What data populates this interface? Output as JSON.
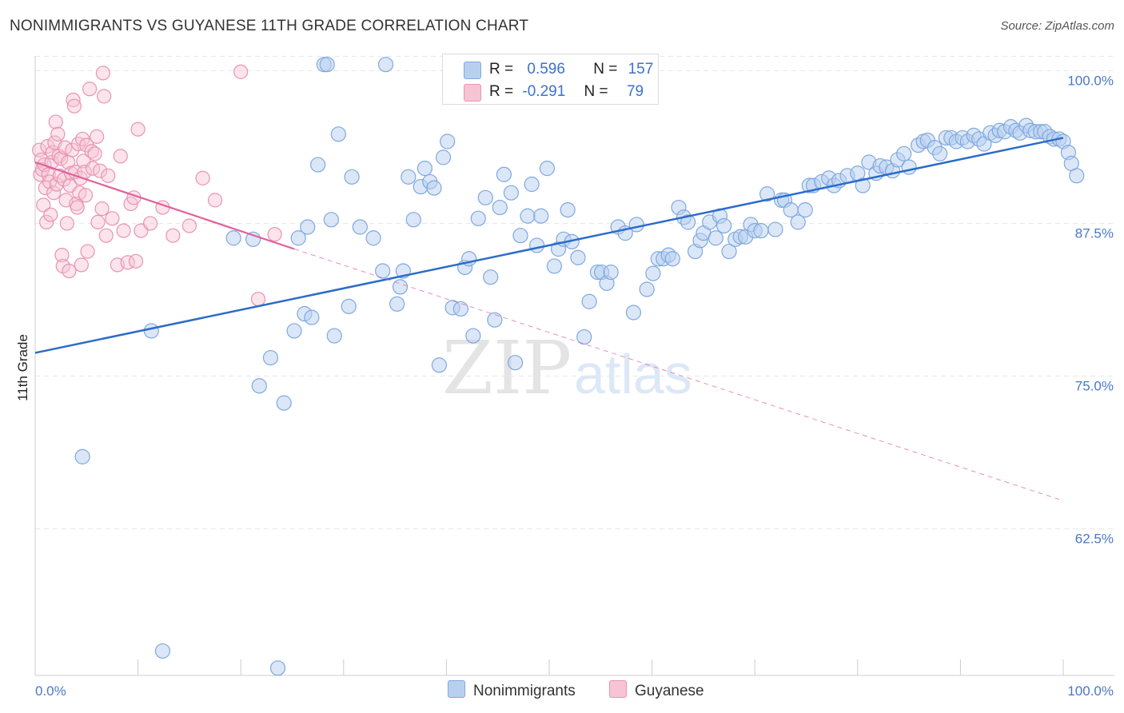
{
  "header": {
    "title": "NONIMMIGRANTS VS GUYANESE 11TH GRADE CORRELATION CHART",
    "source": "Source: ZipAtlas.com"
  },
  "watermark": {
    "zip": "ZIP",
    "atlas": "atlas"
  },
  "legend_stats": {
    "nonimmigrants": {
      "r_label": "R =",
      "r_value": "0.596",
      "n_label": "N =",
      "n_value": "157"
    },
    "guyanese": {
      "r_label": "R =",
      "r_value": "-0.291",
      "n_label": "N =",
      "n_value": "79"
    }
  },
  "bottom_legend": {
    "nonimmigrants": "Nonimmigrants",
    "guyanese": "Guyanese"
  },
  "colors": {
    "blue_fill": "#b8d0f0",
    "blue_stroke": "#7ea8e0",
    "blue_line": "#2b6cc9",
    "pink_fill": "#f7c4d4",
    "pink_stroke": "#e894b0",
    "pink_line": "#e0609a",
    "tick_text": "#4a78c8",
    "grid": "#e6e6e6"
  },
  "chart_data": {
    "type": "scatter",
    "title": "NONIMMIGRANTS VS GUYANESE 11TH GRADE CORRELATION CHART",
    "xlabel": "",
    "ylabel": "11th Grade",
    "xlim": [
      0,
      100
    ],
    "ylim": [
      50.5,
      101.2
    ],
    "y_ticks": [
      62.5,
      75.0,
      87.5,
      100.0
    ],
    "y_tick_labels": [
      "62.5%",
      "75.0%",
      "87.5%",
      "100.0%"
    ],
    "x_tick_labels": [
      "0.0%",
      "100.0%"
    ],
    "grid": true,
    "legend_position": "top-center",
    "series": [
      {
        "name": "Nonimmigrants",
        "trend": {
          "x": [
            0,
            100
          ],
          "y": [
            76.9,
            94.5
          ],
          "style": "solid"
        },
        "points": [
          [
            4.6,
            68.4
          ],
          [
            11.3,
            78.7
          ],
          [
            12.4,
            52.5
          ],
          [
            19.3,
            86.3
          ],
          [
            21.2,
            86.2
          ],
          [
            21.8,
            74.2
          ],
          [
            22.9,
            76.5
          ],
          [
            23.6,
            51.1
          ],
          [
            24.2,
            72.8
          ],
          [
            25.2,
            78.7
          ],
          [
            25.6,
            86.3
          ],
          [
            26.2,
            80.1
          ],
          [
            26.5,
            87.2
          ],
          [
            26.9,
            79.8
          ],
          [
            27.5,
            92.3
          ],
          [
            28.1,
            100.5
          ],
          [
            28.4,
            100.5
          ],
          [
            28.8,
            87.8
          ],
          [
            29.1,
            78.3
          ],
          [
            29.5,
            94.8
          ],
          [
            30.5,
            80.7
          ],
          [
            30.8,
            91.3
          ],
          [
            31.6,
            87.2
          ],
          [
            32.9,
            86.3
          ],
          [
            33.8,
            83.6
          ],
          [
            34.1,
            100.5
          ],
          [
            35.2,
            80.9
          ],
          [
            35.5,
            82.3
          ],
          [
            35.8,
            83.6
          ],
          [
            36.3,
            91.3
          ],
          [
            36.8,
            87.8
          ],
          [
            37.5,
            90.5
          ],
          [
            37.9,
            92.0
          ],
          [
            38.4,
            90.9
          ],
          [
            38.8,
            90.4
          ],
          [
            39.3,
            75.9
          ],
          [
            39.7,
            92.9
          ],
          [
            40.1,
            94.2
          ],
          [
            40.6,
            80.6
          ],
          [
            41.4,
            80.5
          ],
          [
            41.8,
            83.9
          ],
          [
            42.2,
            84.6
          ],
          [
            42.6,
            78.3
          ],
          [
            43.1,
            87.9
          ],
          [
            43.8,
            89.6
          ],
          [
            44.3,
            83.1
          ],
          [
            44.7,
            79.6
          ],
          [
            45.2,
            88.8
          ],
          [
            45.6,
            91.5
          ],
          [
            46.3,
            90.0
          ],
          [
            46.7,
            76.1
          ],
          [
            47.2,
            86.5
          ],
          [
            47.9,
            88.1
          ],
          [
            48.3,
            90.7
          ],
          [
            48.8,
            85.7
          ],
          [
            49.2,
            88.1
          ],
          [
            49.8,
            92.0
          ],
          [
            50.5,
            84.0
          ],
          [
            50.9,
            85.4
          ],
          [
            51.4,
            86.2
          ],
          [
            51.8,
            88.6
          ],
          [
            52.2,
            86.0
          ],
          [
            52.8,
            84.7
          ],
          [
            53.4,
            78.2
          ],
          [
            53.9,
            81.1
          ],
          [
            54.7,
            83.5
          ],
          [
            55.1,
            83.5
          ],
          [
            55.6,
            82.6
          ],
          [
            56.0,
            83.5
          ],
          [
            56.7,
            87.2
          ],
          [
            57.4,
            86.7
          ],
          [
            58.2,
            80.2
          ],
          [
            58.5,
            87.4
          ],
          [
            59.5,
            82.1
          ],
          [
            60.1,
            83.4
          ],
          [
            60.6,
            84.6
          ],
          [
            61.1,
            84.6
          ],
          [
            61.6,
            84.9
          ],
          [
            62.0,
            84.6
          ],
          [
            62.6,
            88.8
          ],
          [
            63.1,
            88.0
          ],
          [
            63.5,
            87.6
          ],
          [
            64.2,
            85.2
          ],
          [
            64.7,
            86.1
          ],
          [
            65.0,
            86.7
          ],
          [
            65.6,
            87.6
          ],
          [
            66.2,
            86.3
          ],
          [
            66.6,
            88.1
          ],
          [
            67.0,
            87.3
          ],
          [
            67.5,
            85.2
          ],
          [
            68.1,
            86.2
          ],
          [
            68.6,
            86.4
          ],
          [
            69.1,
            86.4
          ],
          [
            69.6,
            87.4
          ],
          [
            70.0,
            86.9
          ],
          [
            70.6,
            86.9
          ],
          [
            71.2,
            89.9
          ],
          [
            72.0,
            87.0
          ],
          [
            72.6,
            89.4
          ],
          [
            72.9,
            89.4
          ],
          [
            73.5,
            88.6
          ],
          [
            74.2,
            87.6
          ],
          [
            74.9,
            88.6
          ],
          [
            75.3,
            90.6
          ],
          [
            75.7,
            90.6
          ],
          [
            76.5,
            90.9
          ],
          [
            77.2,
            91.2
          ],
          [
            77.7,
            90.6
          ],
          [
            78.2,
            91.0
          ],
          [
            79.0,
            91.4
          ],
          [
            80.0,
            91.6
          ],
          [
            80.5,
            90.6
          ],
          [
            81.1,
            92.5
          ],
          [
            81.8,
            91.6
          ],
          [
            82.2,
            92.2
          ],
          [
            82.8,
            92.1
          ],
          [
            83.4,
            91.8
          ],
          [
            83.9,
            92.7
          ],
          [
            84.5,
            93.2
          ],
          [
            85.0,
            92.1
          ],
          [
            85.9,
            93.9
          ],
          [
            86.4,
            94.2
          ],
          [
            86.8,
            94.3
          ],
          [
            87.5,
            93.7
          ],
          [
            88.0,
            93.2
          ],
          [
            88.6,
            94.5
          ],
          [
            89.1,
            94.5
          ],
          [
            89.6,
            94.2
          ],
          [
            90.2,
            94.5
          ],
          [
            90.7,
            94.2
          ],
          [
            91.3,
            94.7
          ],
          [
            91.8,
            94.4
          ],
          [
            92.3,
            94.0
          ],
          [
            92.9,
            94.9
          ],
          [
            93.4,
            94.7
          ],
          [
            93.8,
            95.1
          ],
          [
            94.3,
            95.0
          ],
          [
            94.9,
            95.4
          ],
          [
            95.4,
            95.1
          ],
          [
            95.8,
            94.9
          ],
          [
            96.4,
            95.5
          ],
          [
            96.8,
            95.1
          ],
          [
            97.3,
            95.0
          ],
          [
            97.8,
            95.0
          ],
          [
            98.2,
            95.0
          ],
          [
            98.7,
            94.6
          ],
          [
            99.1,
            94.4
          ],
          [
            99.6,
            94.4
          ],
          [
            100.0,
            94.2
          ],
          [
            100.5,
            93.3
          ],
          [
            100.8,
            92.4
          ],
          [
            101.3,
            91.4
          ]
        ]
      },
      {
        "name": "Guyanese",
        "trend": {
          "x": [
            0,
            25.2,
            100
          ],
          "y": [
            92.5,
            85.4,
            64.8
          ],
          "style": "solid-then-dashed"
        },
        "points": [
          [
            0.4,
            93.5
          ],
          [
            0.5,
            91.5
          ],
          [
            0.6,
            92.7
          ],
          [
            0.7,
            91.9
          ],
          [
            0.8,
            89.0
          ],
          [
            0.9,
            92.3
          ],
          [
            1.0,
            90.4
          ],
          [
            1.1,
            87.6
          ],
          [
            1.2,
            93.8
          ],
          [
            1.3,
            91.5
          ],
          [
            1.4,
            90.9
          ],
          [
            1.5,
            88.2
          ],
          [
            1.6,
            92.5
          ],
          [
            1.7,
            93.3
          ],
          [
            1.8,
            90.0
          ],
          [
            1.9,
            94.1
          ],
          [
            2.0,
            95.8
          ],
          [
            2.1,
            90.7
          ],
          [
            2.2,
            94.8
          ],
          [
            2.3,
            93.0
          ],
          [
            2.4,
            91.4
          ],
          [
            2.5,
            92.8
          ],
          [
            2.6,
            84.9
          ],
          [
            2.7,
            84.0
          ],
          [
            2.8,
            91.1
          ],
          [
            2.9,
            93.7
          ],
          [
            3.0,
            89.4
          ],
          [
            3.1,
            87.5
          ],
          [
            3.2,
            92.5
          ],
          [
            3.3,
            83.6
          ],
          [
            3.4,
            90.6
          ],
          [
            3.5,
            91.6
          ],
          [
            3.6,
            93.5
          ],
          [
            3.7,
            97.6
          ],
          [
            3.8,
            97.1
          ],
          [
            3.9,
            91.7
          ],
          [
            4.0,
            89.1
          ],
          [
            4.1,
            88.8
          ],
          [
            4.2,
            94.0
          ],
          [
            4.3,
            90.0
          ],
          [
            4.4,
            91.2
          ],
          [
            4.5,
            84.1
          ],
          [
            4.6,
            94.4
          ],
          [
            4.7,
            92.6
          ],
          [
            4.8,
            91.7
          ],
          [
            4.9,
            89.8
          ],
          [
            5.0,
            93.9
          ],
          [
            5.1,
            85.2
          ],
          [
            5.3,
            98.5
          ],
          [
            5.5,
            93.4
          ],
          [
            5.6,
            92.0
          ],
          [
            5.8,
            93.2
          ],
          [
            6.0,
            94.6
          ],
          [
            6.1,
            87.6
          ],
          [
            6.3,
            91.8
          ],
          [
            6.5,
            88.7
          ],
          [
            6.6,
            99.8
          ],
          [
            6.7,
            97.9
          ],
          [
            6.9,
            86.5
          ],
          [
            7.1,
            91.4
          ],
          [
            7.5,
            87.9
          ],
          [
            8.0,
            84.1
          ],
          [
            8.3,
            93.0
          ],
          [
            8.6,
            86.9
          ],
          [
            9.0,
            84.3
          ],
          [
            9.3,
            89.1
          ],
          [
            9.6,
            89.6
          ],
          [
            9.8,
            84.4
          ],
          [
            10.0,
            95.2
          ],
          [
            10.3,
            86.9
          ],
          [
            11.2,
            87.5
          ],
          [
            12.4,
            88.8
          ],
          [
            13.4,
            86.5
          ],
          [
            15.0,
            87.3
          ],
          [
            16.3,
            91.2
          ],
          [
            17.5,
            89.4
          ],
          [
            20.0,
            99.9
          ],
          [
            21.7,
            81.3
          ],
          [
            23.3,
            86.6
          ]
        ]
      }
    ]
  }
}
